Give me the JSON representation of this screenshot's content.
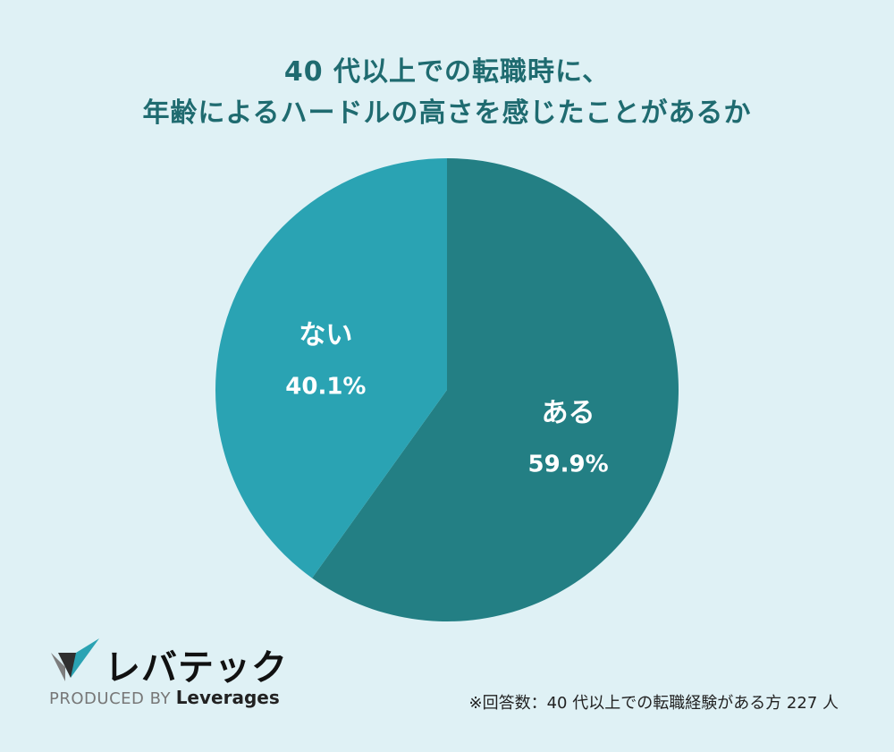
{
  "title_lines": [
    "40 代以上での転職時に、",
    "年齢によるハードルの高さを感じたことがあるか"
  ],
  "chart_data": {
    "type": "pie",
    "slices": [
      {
        "label": "ある",
        "value": 59.9,
        "value_label": "59.9%",
        "color": "#237f84"
      },
      {
        "label": "ない",
        "value": 40.1,
        "value_label": "40.1%",
        "color": "#2aa3b3"
      }
    ]
  },
  "logo": {
    "name": "レバテック",
    "produced_by": "PRODUCED BY",
    "company": "Leverages"
  },
  "footnote": "※回答数：40 代以上での転職経験がある方 227 人",
  "colors": {
    "background": "#dff1f5",
    "title": "#1f6b70"
  }
}
